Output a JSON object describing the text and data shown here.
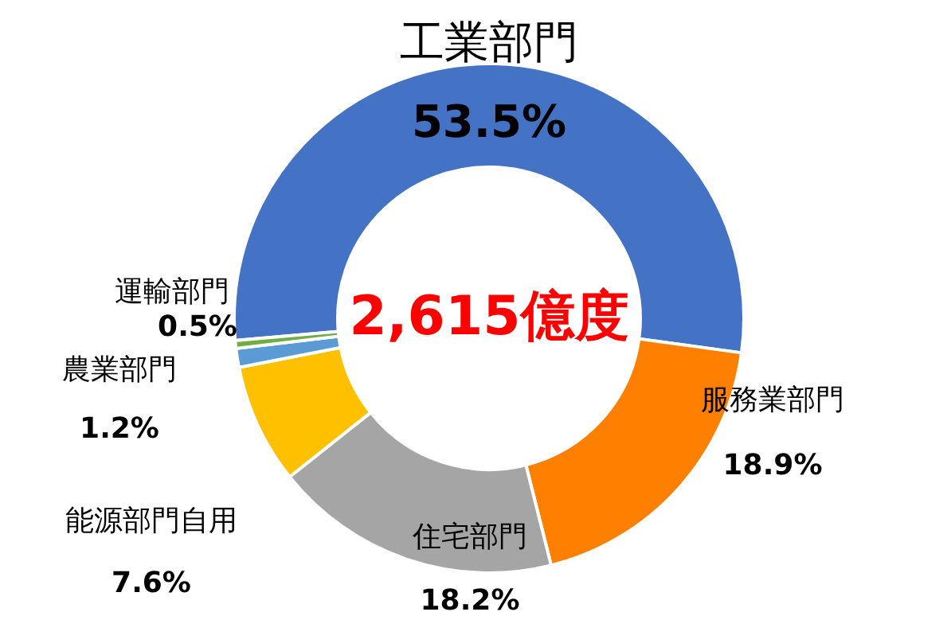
{
  "chart_data": {
    "type": "donut",
    "categories": [
      "工業部門",
      "服務業部門",
      "住宅部門",
      "能源部門自用",
      "農業部門",
      "運輸部門"
    ],
    "values": [
      53.5,
      18.9,
      18.2,
      7.6,
      1.2,
      0.5
    ],
    "value_labels": [
      "53.5%",
      "18.9%",
      "18.2%",
      "7.6%",
      "1.2%",
      "0.5%"
    ],
    "colors": [
      "#4472c4",
      "#ff7f00",
      "#a5a5a5",
      "#ffc000",
      "#5b9bd5",
      "#70ad47"
    ],
    "annotations": [
      {
        "text": "2,615億度"
      }
    ]
  }
}
